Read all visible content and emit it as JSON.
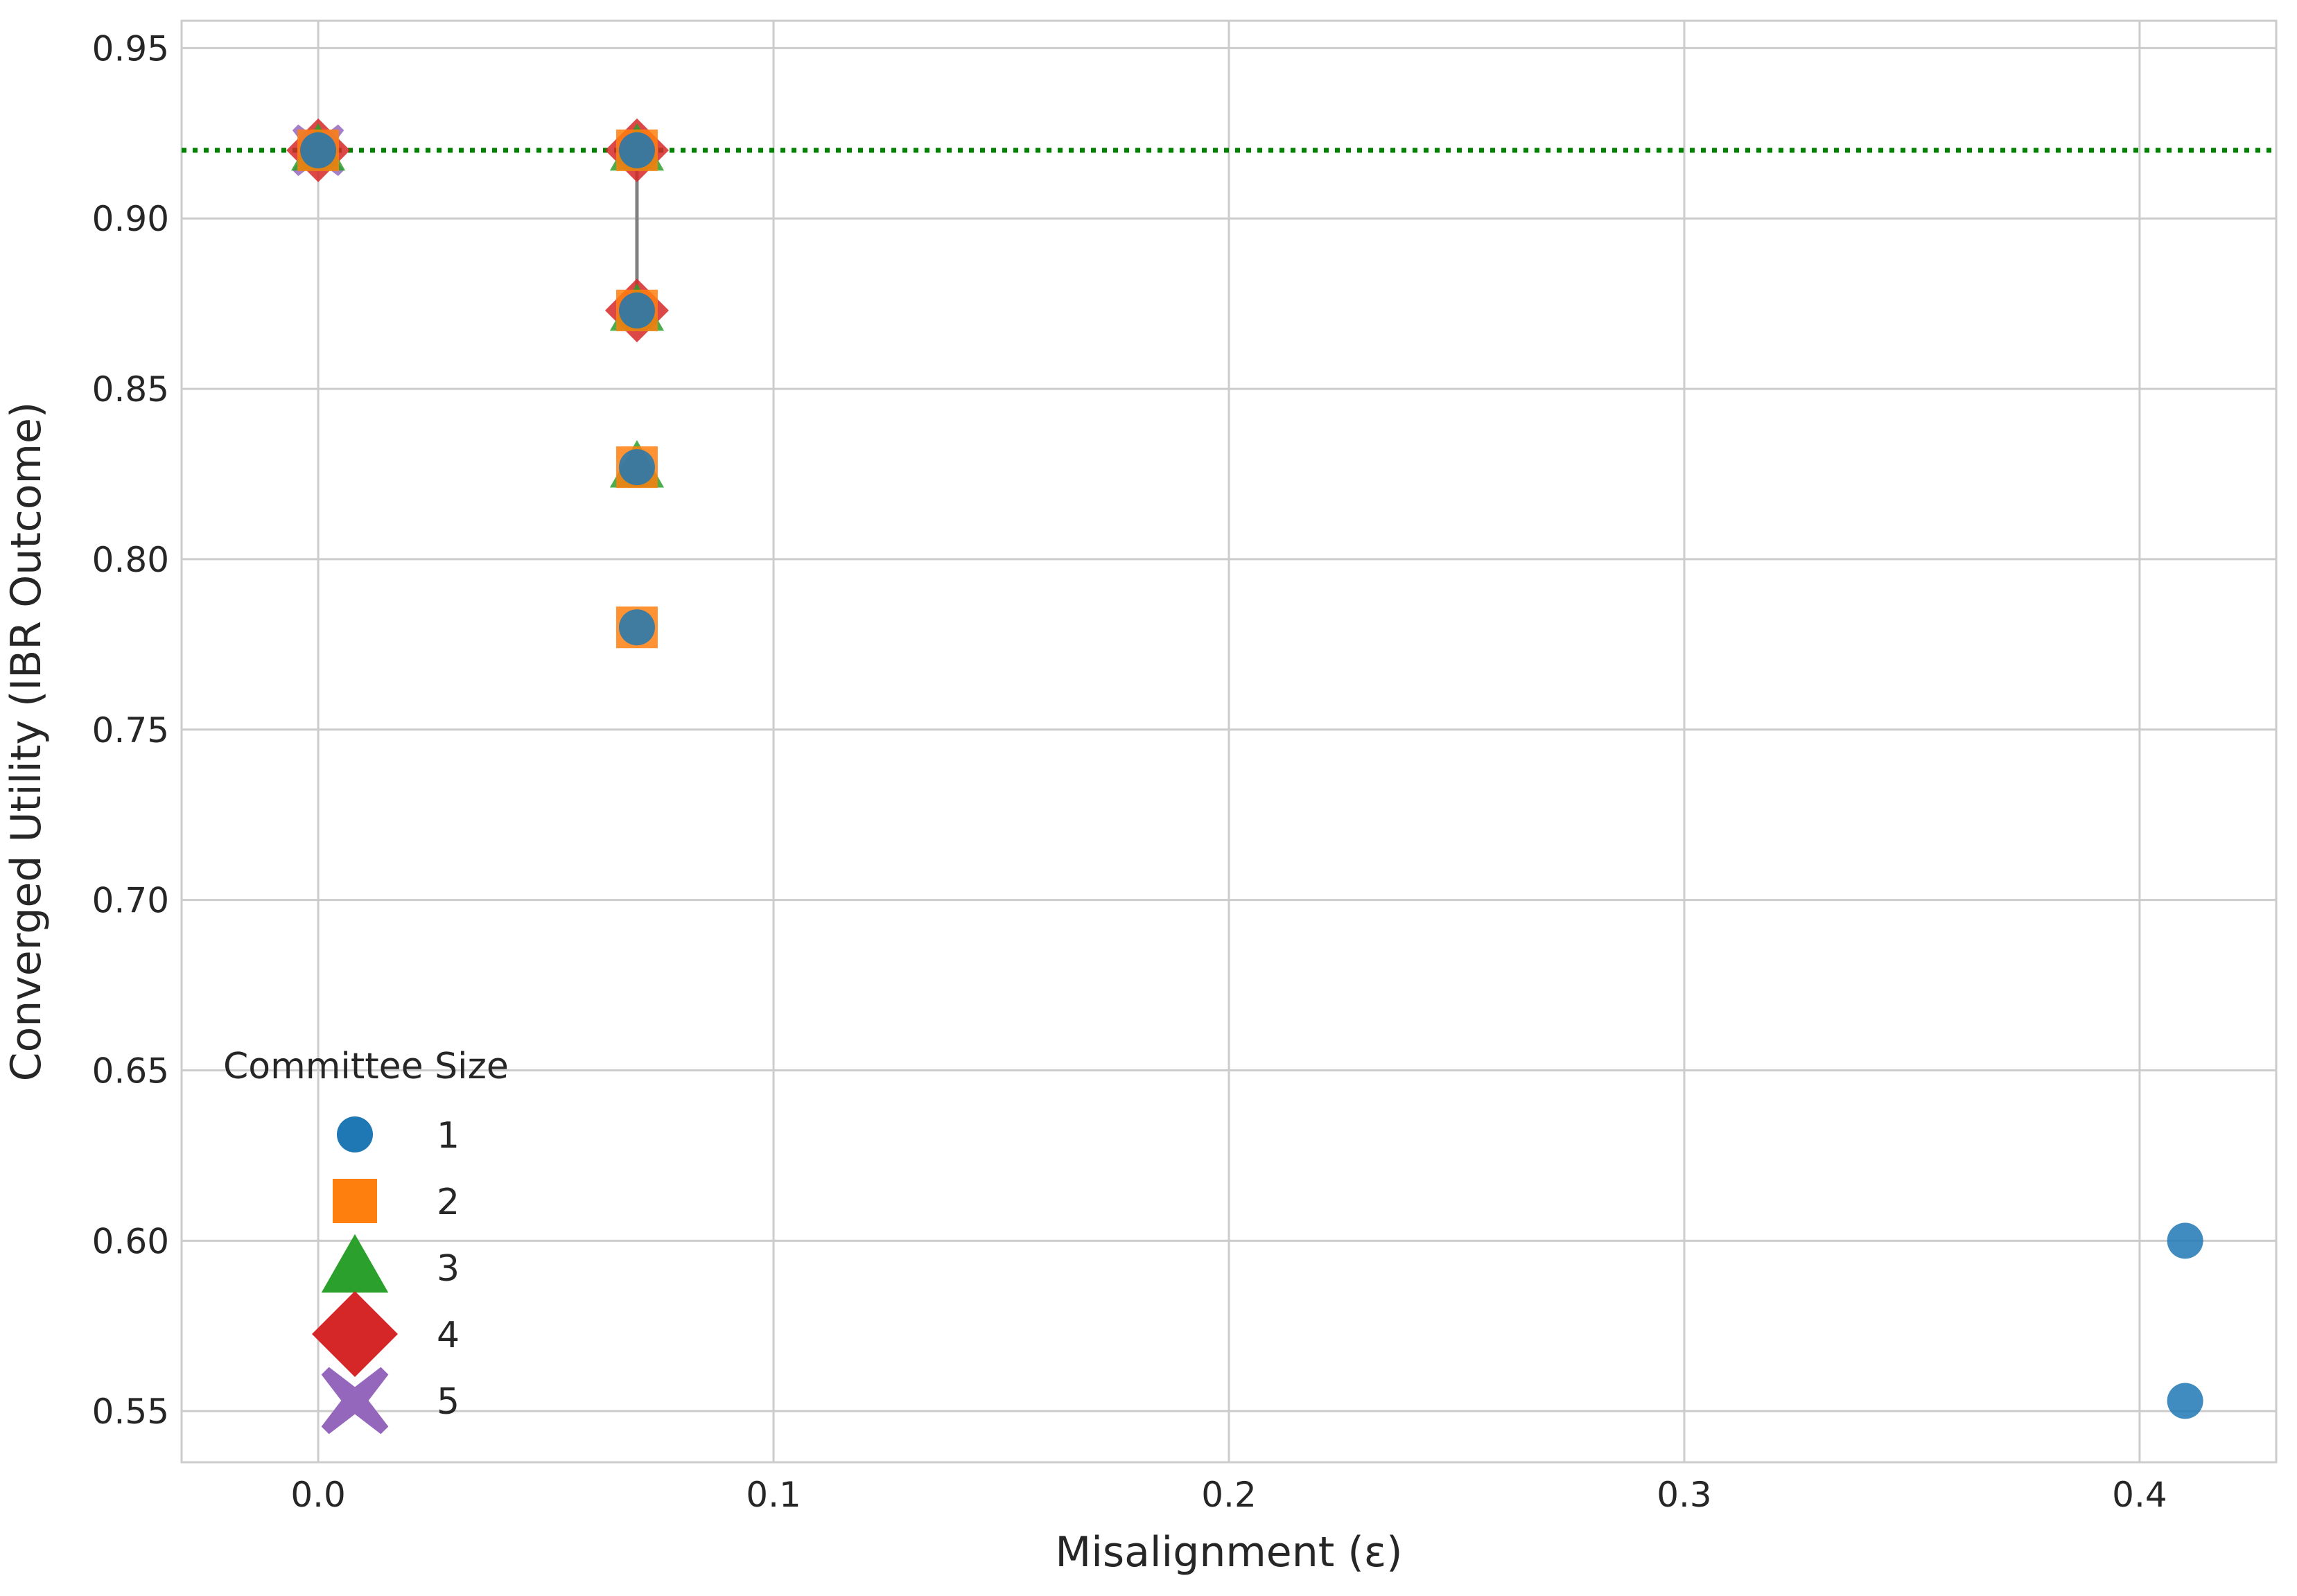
{
  "chart_data": {
    "type": "scatter",
    "title": "",
    "xlabel": "Misalignment (ε)",
    "ylabel": "Converged Utility (IBR Outcome)",
    "xlim": [
      -0.03,
      0.43
    ],
    "ylim": [
      0.535,
      0.958
    ],
    "x_ticks": [
      0.0,
      0.1,
      0.2,
      0.3,
      0.4
    ],
    "x_tick_labels": [
      "0.0",
      "0.1",
      "0.2",
      "0.3",
      "0.4"
    ],
    "y_ticks": [
      0.55,
      0.6,
      0.65,
      0.7,
      0.75,
      0.8,
      0.85,
      0.9,
      0.95
    ],
    "y_tick_labels": [
      "0.55",
      "0.60",
      "0.65",
      "0.70",
      "0.75",
      "0.80",
      "0.85",
      "0.90",
      "0.95"
    ],
    "grid": true,
    "reference_line": {
      "y": 0.92,
      "style": "dotted",
      "color": "#008000"
    },
    "vertical_segments": [
      {
        "x": 0.07,
        "y_from": 0.873,
        "y_to": 0.92,
        "color": "#808080"
      }
    ],
    "legend": {
      "title": "Committee Size",
      "placement": "lower-left"
    },
    "series": [
      {
        "name": "1",
        "marker": "circle",
        "color": "#1f77b4",
        "points": [
          [
            0.0,
            0.92
          ],
          [
            0.07,
            0.78
          ],
          [
            0.07,
            0.827
          ],
          [
            0.07,
            0.873
          ],
          [
            0.07,
            0.92
          ],
          [
            0.41,
            0.6
          ],
          [
            0.41,
            0.553
          ]
        ]
      },
      {
        "name": "2",
        "marker": "square",
        "color": "#ff7f0e",
        "points": [
          [
            0.0,
            0.92
          ],
          [
            0.07,
            0.78
          ],
          [
            0.07,
            0.827
          ],
          [
            0.07,
            0.873
          ],
          [
            0.07,
            0.92
          ]
        ]
      },
      {
        "name": "3",
        "marker": "triangle",
        "color": "#2ca02c",
        "points": [
          [
            0.0,
            0.92
          ],
          [
            0.07,
            0.827
          ],
          [
            0.07,
            0.873
          ],
          [
            0.07,
            0.92
          ]
        ]
      },
      {
        "name": "4",
        "marker": "diamond",
        "color": "#d62728",
        "points": [
          [
            0.0,
            0.92
          ],
          [
            0.07,
            0.873
          ],
          [
            0.07,
            0.92
          ]
        ]
      },
      {
        "name": "5",
        "marker": "x",
        "color": "#9467bd",
        "points": [
          [
            0.0,
            0.92
          ]
        ]
      }
    ]
  }
}
